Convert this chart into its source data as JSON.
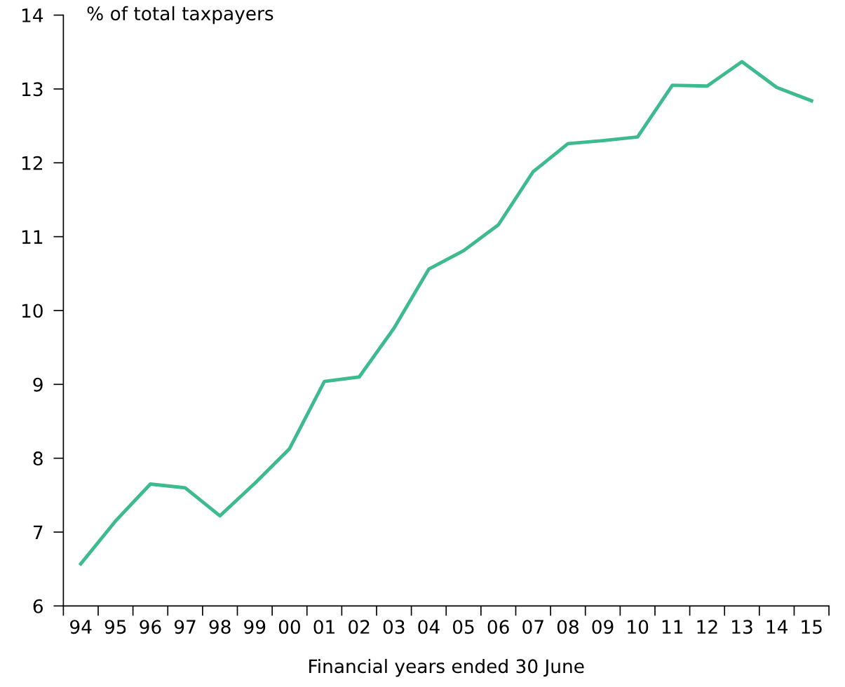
{
  "chart_data": {
    "type": "line",
    "ylabel": "% of total taxpayers",
    "xlabel": "Financial years ended 30 June",
    "categories": [
      "94",
      "95",
      "96",
      "97",
      "98",
      "99",
      "00",
      "01",
      "02",
      "03",
      "04",
      "05",
      "06",
      "07",
      "08",
      "09",
      "10",
      "11",
      "12",
      "13",
      "14",
      "15"
    ],
    "series": [
      {
        "color": "#3dbb8e",
        "values": [
          6.57,
          7.15,
          7.65,
          7.6,
          7.22,
          7.66,
          8.13,
          9.04,
          9.1,
          9.76,
          10.56,
          10.81,
          11.16,
          11.88,
          12.26,
          12.3,
          12.35,
          13.05,
          13.04,
          13.37,
          13.02,
          12.84
        ]
      }
    ],
    "ylim": [
      6,
      14
    ],
    "yticks": [
      6,
      7,
      8,
      9,
      10,
      11,
      12,
      13,
      14
    ],
    "grid": false,
    "marker": "none",
    "line_style": "solid"
  }
}
